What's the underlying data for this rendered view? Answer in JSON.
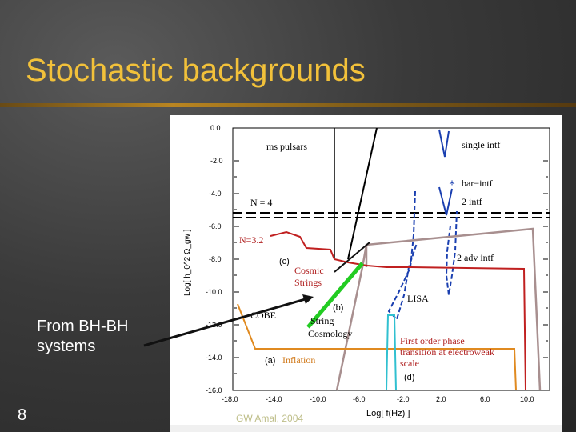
{
  "slide": {
    "title": "Stochastic backgrounds",
    "note": "From BH-BH\nsystems",
    "number": "8",
    "credit": "GW Amal, 2004"
  },
  "chart_data": {
    "type": "line",
    "xlabel": "Log[ f(Hz) ]",
    "ylabel": "Log[ h_0^2 Ω_gw ]",
    "xlim": [
      -18,
      11
    ],
    "ylim": [
      -16,
      0
    ],
    "x_ticks": [
      "-18.0",
      "-14.0",
      "-10.0",
      "-6.0",
      "-2.0",
      "2.0",
      "6.0",
      "10.0"
    ],
    "y_ticks": [
      "0.0",
      "-2.0",
      "-4.0",
      "-6.0",
      "-8.0",
      "-10.0",
      "-12.0",
      "-14.0",
      "-16.0"
    ],
    "labels": {
      "ms_pulsars": "ms pulsars",
      "single_intf": "single intf",
      "bar_intf": "bar−intf",
      "two_intf": "2 intf",
      "n4": "N = 4",
      "n32": "N=3.2",
      "c": "(c)",
      "cosmic": "Cosmic",
      "strings": "Strings",
      "two_adv": "2 adv intf",
      "lisa": "LISA",
      "b": "(b)",
      "cobe": "COBE",
      "string": "String",
      "cosmology": "Cosmology",
      "fo1": "First order phase",
      "fo2": "transition at electroweak",
      "fo3": "scale",
      "a": "(a)",
      "inflation": "Inflation",
      "d": "(d)"
    }
  }
}
